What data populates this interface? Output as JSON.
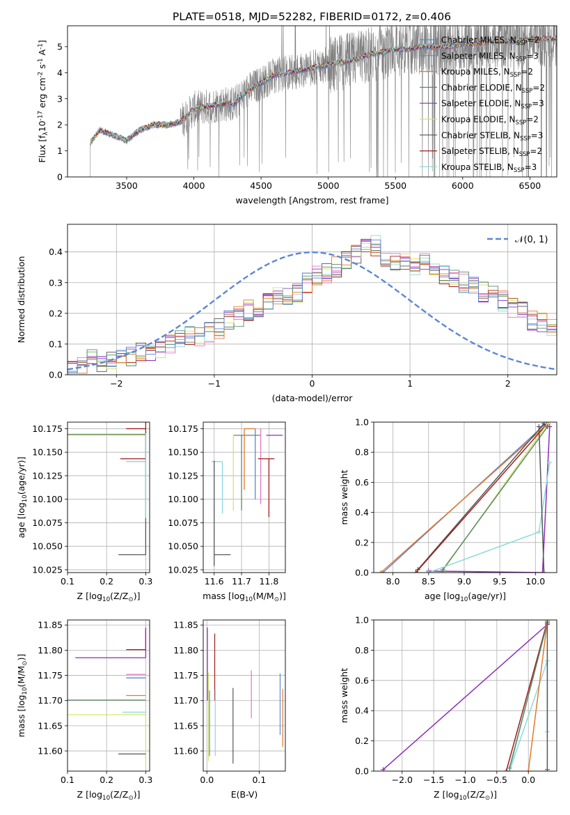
{
  "figure_title": "PLATE=0518, MJD=52282, FIBERID=0172, z=0.406",
  "colors": {
    "chabrier_miles": "#5b86d6",
    "salpeter_miles": "#5b86d6",
    "kroupa_miles": "#e3792b",
    "chabrier_elodie": "#5a8a68",
    "salpeter_elodie": "#8e2cb8",
    "kroupa_elodie": "#d6e36a",
    "chabrier_stelib": "#555555",
    "salpeter_stelib": "#a31b1b",
    "kroupa_stelib": "#8cd9dc",
    "data": "#808080",
    "gaussian": "#5b86d6",
    "pink": "#e377c2"
  },
  "chart_data": [
    {
      "id": "spectrum",
      "type": "line",
      "xlabel": "wavelength [Angstrom, rest frame]",
      "ylabel": "Flux [f$_\\lambda$10$^{-17}$ erg cm$^{-2}$ s$^{-1}$ A$^{-1}$]",
      "xlim": [
        3060,
        6700
      ],
      "ylim": [
        0,
        5.8
      ],
      "xticks": [
        3500,
        4000,
        4500,
        5000,
        5500,
        6000,
        6500
      ],
      "yticks": [
        0,
        1,
        2,
        3,
        4,
        5
      ],
      "legend_loc": "upper right",
      "legend": [
        {
          "label": "Chabrier MILES, N$_{SSP}$=2",
          "color": "#5b86d6"
        },
        {
          "label": "Salpeter MILES, N$_{SSP}$=3",
          "color": "#5b86d6"
        },
        {
          "label": "Kroupa MILES, N$_{SSP}$=2",
          "color": "#e3792b"
        },
        {
          "label": "Chabrier ELODIE, N$_{SSP}$=2",
          "color": "#5a8a68"
        },
        {
          "label": "Salpeter ELODIE, N$_{SSP}$=3",
          "color": "#8e2cb8"
        },
        {
          "label": "Kroupa ELODIE, N$_{SSP}$=2",
          "color": "#d6e36a"
        },
        {
          "label": "Chabrier STELIB, N$_{SSP}$=3",
          "color": "#555555"
        },
        {
          "label": "Salpeter STELIB, N$_{SSP}$=2",
          "color": "#a31b1b"
        },
        {
          "label": "Kroupa STELIB, N$_{SSP}$=3",
          "color": "#8cd9dc"
        }
      ],
      "continuum": [
        [
          3230,
          1.3
        ],
        [
          3300,
          1.8
        ],
        [
          3400,
          1.6
        ],
        [
          3500,
          1.4
        ],
        [
          3600,
          1.8
        ],
        [
          3700,
          2.0
        ],
        [
          3800,
          2.0
        ],
        [
          3900,
          2.1
        ],
        [
          4000,
          2.6
        ],
        [
          4100,
          2.7
        ],
        [
          4200,
          2.8
        ],
        [
          4300,
          2.8
        ],
        [
          4400,
          3.3
        ],
        [
          4500,
          3.6
        ],
        [
          4600,
          3.9
        ],
        [
          4700,
          4.0
        ],
        [
          4800,
          4.1
        ],
        [
          4900,
          4.2
        ],
        [
          5000,
          4.3
        ],
        [
          5100,
          4.4
        ],
        [
          5200,
          4.5
        ],
        [
          5300,
          4.7
        ],
        [
          5400,
          4.8
        ],
        [
          5500,
          4.9
        ],
        [
          5600,
          4.9
        ],
        [
          5700,
          5.0
        ],
        [
          5800,
          5.0
        ],
        [
          5900,
          5.0
        ],
        [
          6000,
          5.1
        ],
        [
          6100,
          5.1
        ],
        [
          6200,
          5.2
        ],
        [
          6300,
          5.2
        ],
        [
          6400,
          5.2
        ],
        [
          6500,
          5.3
        ]
      ]
    },
    {
      "id": "residuals",
      "type": "line",
      "xlabel": "(data-model)/error",
      "ylabel": "Normed distribution",
      "xlim": [
        -2.5,
        2.5
      ],
      "ylim": [
        0,
        0.49
      ],
      "xticks": [
        -2,
        -1,
        0,
        1,
        2
      ],
      "yticks": [
        0.0,
        0.1,
        0.2,
        0.3,
        0.4
      ],
      "legend": [
        {
          "label": "$\\mathcal{N}(0, 1)$",
          "color": "#5b86d6"
        }
      ],
      "bin_edges_start": -2.5,
      "bin_width": 0.1,
      "hist_reference": [
        0.02,
        0.03,
        0.05,
        0.04,
        0.05,
        0.06,
        0.06,
        0.07,
        0.08,
        0.09,
        0.1,
        0.12,
        0.13,
        0.12,
        0.14,
        0.15,
        0.18,
        0.19,
        0.21,
        0.22,
        0.24,
        0.25,
        0.26,
        0.27,
        0.3,
        0.32,
        0.33,
        0.35,
        0.37,
        0.39,
        0.41,
        0.42,
        0.38,
        0.36,
        0.37,
        0.35,
        0.36,
        0.34,
        0.33,
        0.32,
        0.3,
        0.29,
        0.27,
        0.26,
        0.24,
        0.22,
        0.21,
        0.18,
        0.17,
        0.15
      ]
    },
    {
      "id": "age_vs_Z",
      "type": "scatter",
      "xlabel": "Z [log$_{10}$(Z/Z$_\\odot$)]",
      "ylabel": "age  [log$_{10}$(age/yr)]",
      "xlim": [
        0.1,
        0.31
      ],
      "ylim": [
        10.022,
        10.182
      ],
      "xticks": [
        0.1,
        0.2,
        0.3
      ],
      "yticks": [
        10.025,
        10.05,
        10.075,
        10.1,
        10.125,
        10.15,
        10.175
      ],
      "ytick_labels": [
        "10.025",
        "10.050",
        "10.075",
        "10.100",
        "10.125",
        "10.150",
        "10.175"
      ],
      "points": [
        {
          "x": 0.3,
          "y": 10.169,
          "xerr": [
            0.2,
            0.0
          ],
          "yerr": [
            0.0,
            0.0
          ],
          "color": "#5a8a68"
        },
        {
          "x": 0.3,
          "y": 10.168,
          "xerr": [
            0.2,
            0.0
          ],
          "yerr": [
            0.0,
            0.0
          ],
          "color": "#d6e36a"
        },
        {
          "x": 0.3,
          "y": 10.175,
          "xerr": [
            0.05,
            0.0
          ],
          "yerr": [
            0.0,
            0.0
          ],
          "color": "#a31b1b"
        },
        {
          "x": 0.3,
          "y": 10.143,
          "xerr": [
            0.065,
            0.0
          ],
          "yerr": [
            0.0,
            0.04
          ],
          "color": "#a31b1b"
        },
        {
          "x": 0.3,
          "y": 10.14,
          "xerr": [
            0.05,
            0.0
          ],
          "yerr": [
            0.0,
            0.0
          ],
          "color": "#8cd9dc"
        },
        {
          "x": 0.3,
          "y": 10.041,
          "xerr": [
            0.07,
            0.0
          ],
          "yerr": [
            0.0,
            0.13
          ],
          "color": "#555555"
        },
        {
          "x": 0.3,
          "y": 10.17,
          "xerr": [
            0.0,
            0.0
          ],
          "yerr": [
            0.09,
            0.0
          ],
          "color": "#8cd9dc"
        }
      ]
    },
    {
      "id": "age_vs_mass",
      "type": "scatter",
      "xlabel": "mass [log$_{10}$($M/M_\\odot$)]",
      "ylabel": "",
      "xlim": [
        11.56,
        11.86
      ],
      "ylim": [
        10.022,
        10.182
      ],
      "xticks": [
        11.6,
        11.7,
        11.8
      ],
      "yticks": [
        10.025,
        10.05,
        10.075,
        10.1,
        10.125,
        10.15,
        10.175
      ],
      "ytick_labels": [
        "10.025",
        "10.050",
        "10.075",
        "10.100",
        "10.125",
        "10.150",
        "10.175"
      ],
      "points": [
        {
          "x": 11.7,
          "y": 10.168,
          "xerr": [
            0.03,
            0.07
          ],
          "yerr": [
            0.08,
            0.0
          ],
          "color": "#5a8a68"
        },
        {
          "x": 11.67,
          "y": 10.168,
          "xerr": [
            0.0,
            0.0
          ],
          "yerr": [
            0.08,
            0.0
          ],
          "color": "#d6e36a"
        },
        {
          "x": 11.71,
          "y": 10.175,
          "xerr": [
            0.0,
            0.04
          ],
          "yerr": [
            0.065,
            0.0
          ],
          "color": "#e3792b"
        },
        {
          "x": 11.75,
          "y": 10.175,
          "xerr": [
            0.0,
            0.0
          ],
          "yerr": [
            0.075,
            0.0
          ],
          "color": "#5b86d6"
        },
        {
          "x": 11.79,
          "y": 10.168,
          "xerr": [
            0.0,
            0.06
          ],
          "yerr": [
            0.0,
            0.0
          ],
          "color": "#8e2cb8"
        },
        {
          "x": 11.77,
          "y": 10.175,
          "xerr": [
            0.0,
            0.0
          ],
          "yerr": [
            0.08,
            0.0
          ],
          "color": "#e377c2"
        },
        {
          "x": 11.8,
          "y": 10.143,
          "xerr": [
            0.04,
            0.02
          ],
          "yerr": [
            0.062,
            0.0
          ],
          "color": "#a31b1b"
        },
        {
          "x": 11.63,
          "y": 10.14,
          "xerr": [
            0.04,
            0.0
          ],
          "yerr": [
            0.055,
            0.0
          ],
          "color": "#8cd9dc"
        },
        {
          "x": 11.6,
          "y": 10.041,
          "xerr": [
            0.0,
            0.06
          ],
          "yerr": [
            0.012,
            0.1
          ],
          "color": "#555555"
        }
      ]
    },
    {
      "id": "massweight_vs_age",
      "type": "line",
      "xlabel": "age  [log$_{10}$(age/yr)]",
      "ylabel": "mass weight",
      "xlim": [
        7.73,
        10.3
      ],
      "ylim": [
        0.0,
        1.0
      ],
      "xticks": [
        8.0,
        8.5,
        9.0,
        9.5,
        10.0
      ],
      "yticks": [
        0.0,
        0.2,
        0.4,
        0.6,
        0.8,
        1.0
      ],
      "series": [
        {
          "x": [
            7.86,
            10.17
          ],
          "y": [
            0.0,
            1.0
          ],
          "color": "#5b86d6"
        },
        {
          "x": [
            7.83,
            10.18
          ],
          "y": [
            0.0,
            0.99
          ],
          "color": "#e3792b"
        },
        {
          "x": [
            8.35,
            10.12,
            10.17
          ],
          "y": [
            0.02,
            0.99,
            0.97
          ],
          "color": "#555555"
        },
        {
          "x": [
            8.32,
            10.15
          ],
          "y": [
            0.0,
            0.98
          ],
          "color": "#a31b1b"
        },
        {
          "x": [
            8.68,
            10.17
          ],
          "y": [
            0.0,
            0.99
          ],
          "color": "#d6e36a"
        },
        {
          "x": [
            8.7,
            10.17
          ],
          "y": [
            0.02,
            0.97
          ],
          "color": "#5a8a68"
        },
        {
          "x": [
            8.5,
            10.1,
            10.2
          ],
          "y": [
            0.01,
            0.0,
            0.97
          ],
          "color": "#8e2cb8"
        },
        {
          "x": [
            8.5,
            10.05,
            10.2
          ],
          "y": [
            0.0,
            0.27,
            0.73
          ],
          "color": "#8cd9dc"
        },
        {
          "x": [
            10.05,
            10.12
          ],
          "y": [
            0.97,
            0.0
          ],
          "color": "#555555"
        }
      ]
    },
    {
      "id": "mass_vs_Z",
      "type": "scatter",
      "xlabel": "Z [log$_{10}$(Z/Z$_\\odot$)]",
      "ylabel": "mass [log$_{10}$($M/M_\\odot$)]",
      "xlim": [
        0.1,
        0.31
      ],
      "ylim": [
        11.56,
        11.86
      ],
      "xticks": [
        0.1,
        0.2,
        0.3
      ],
      "yticks": [
        11.6,
        11.65,
        11.7,
        11.75,
        11.8,
        11.85
      ],
      "ytick_labels": [
        "11.60",
        "11.65",
        "11.70",
        "11.75",
        "11.80",
        "11.85"
      ],
      "points": [
        {
          "x": 0.3,
          "y": 11.801,
          "xerr": [
            0.05,
            0.0
          ],
          "yerr": [
            0.0,
            0.04
          ],
          "color": "#a31b1b"
        },
        {
          "x": 0.3,
          "y": 11.785,
          "xerr": [
            0.18,
            0.0
          ],
          "yerr": [
            0.0,
            0.06
          ],
          "color": "#8e2cb8"
        },
        {
          "x": 0.3,
          "y": 11.752,
          "xerr": [
            0.05,
            0.0
          ],
          "yerr": [
            0.0,
            0.0
          ],
          "color": "#e377c2"
        },
        {
          "x": 0.3,
          "y": 11.745,
          "xerr": [
            0.05,
            0.0
          ],
          "yerr": [
            0.0,
            0.0
          ],
          "color": "#5b86d6"
        },
        {
          "x": 0.3,
          "y": 11.71,
          "xerr": [
            0.05,
            0.0
          ],
          "yerr": [
            0.0,
            0.0
          ],
          "color": "#e3792b"
        },
        {
          "x": 0.3,
          "y": 11.701,
          "xerr": [
            0.2,
            0.0
          ],
          "yerr": [
            0.0,
            0.0
          ],
          "color": "#5a8a68"
        },
        {
          "x": 0.3,
          "y": 11.677,
          "xerr": [
            0.06,
            0.0
          ],
          "yerr": [
            0.0,
            0.0
          ],
          "color": "#8cd9dc"
        },
        {
          "x": 0.3,
          "y": 11.672,
          "xerr": [
            0.2,
            0.0
          ],
          "yerr": [
            0.1,
            0.0
          ],
          "color": "#d6e36a"
        },
        {
          "x": 0.3,
          "y": 11.594,
          "xerr": [
            0.07,
            0.0
          ],
          "yerr": [
            0.0,
            0.0
          ],
          "color": "#555555"
        }
      ]
    },
    {
      "id": "mass_vs_EBV",
      "type": "scatter",
      "xlabel": "E(B-V)",
      "ylabel": "",
      "xlim": [
        -0.007,
        0.15
      ],
      "ylim": [
        11.56,
        11.86
      ],
      "xticks": [
        0.0,
        0.1
      ],
      "yticks": [
        11.6,
        11.65,
        11.7,
        11.75,
        11.8,
        11.85
      ],
      "ytick_labels": [
        "11.60",
        "11.65",
        "11.70",
        "11.75",
        "11.80",
        "11.85"
      ],
      "segments": [
        {
          "x": 0.001,
          "y0": 11.7,
          "y1": 11.845,
          "color": "#8e2cb8"
        },
        {
          "x": 0.003,
          "y0": 11.58,
          "y1": 11.756,
          "color": "#d6e36a"
        },
        {
          "x": 0.005,
          "y0": 11.59,
          "y1": 11.72,
          "color": "#5b86d6"
        },
        {
          "x": 0.015,
          "y0": 11.7,
          "y1": 11.833,
          "color": "#a31b1b"
        },
        {
          "x": 0.016,
          "y0": 11.59,
          "y1": 11.722,
          "color": "#8cd9dc"
        },
        {
          "x": 0.05,
          "y0": 11.575,
          "y1": 11.725,
          "color": "#555555"
        },
        {
          "x": 0.085,
          "y0": 11.665,
          "y1": 11.76,
          "color": "#e377c2"
        },
        {
          "x": 0.14,
          "y0": 11.632,
          "y1": 11.754,
          "color": "#5b86d6"
        },
        {
          "x": 0.145,
          "y0": 11.608,
          "y1": 11.723,
          "color": "#e3792b"
        }
      ]
    },
    {
      "id": "massweight_vs_Z",
      "type": "line",
      "xlabel": "Z [log$_{10}$(Z/Z$_\\odot$)]",
      "ylabel": "mass weight",
      "xlim": [
        -2.45,
        0.45
      ],
      "ylim": [
        0.0,
        1.0
      ],
      "xticks": [
        -2.0,
        -1.5,
        -1.0,
        -0.5,
        0.0
      ],
      "yticks": [
        0.0,
        0.2,
        0.4,
        0.6,
        0.8,
        1.0
      ],
      "series": [
        {
          "x": [
            -2.3,
            0.3
          ],
          "y": [
            0.01,
            0.97
          ],
          "color": "#8e2cb8"
        },
        {
          "x": [
            -0.3,
            0.3
          ],
          "y": [
            0.0,
            1.0
          ],
          "color": "#8cd9dc"
        },
        {
          "x": [
            -0.3,
            0.3,
            0.3
          ],
          "y": [
            0.0,
            0.73,
            0.26
          ],
          "color": "#8cd9dc"
        },
        {
          "x": [
            -0.35,
            0.3
          ],
          "y": [
            0.0,
            0.99
          ],
          "color": "#a31b1b"
        },
        {
          "x": [
            -0.3,
            0.3
          ],
          "y": [
            0.02,
            0.98
          ],
          "color": "#5a8a68"
        },
        {
          "x": [
            0.0,
            0.3
          ],
          "y": [
            0.0,
            0.99
          ],
          "color": "#e3792b"
        },
        {
          "x": [
            0.3,
            0.3
          ],
          "y": [
            0.01,
            0.98
          ],
          "color": "#555555"
        }
      ]
    }
  ]
}
